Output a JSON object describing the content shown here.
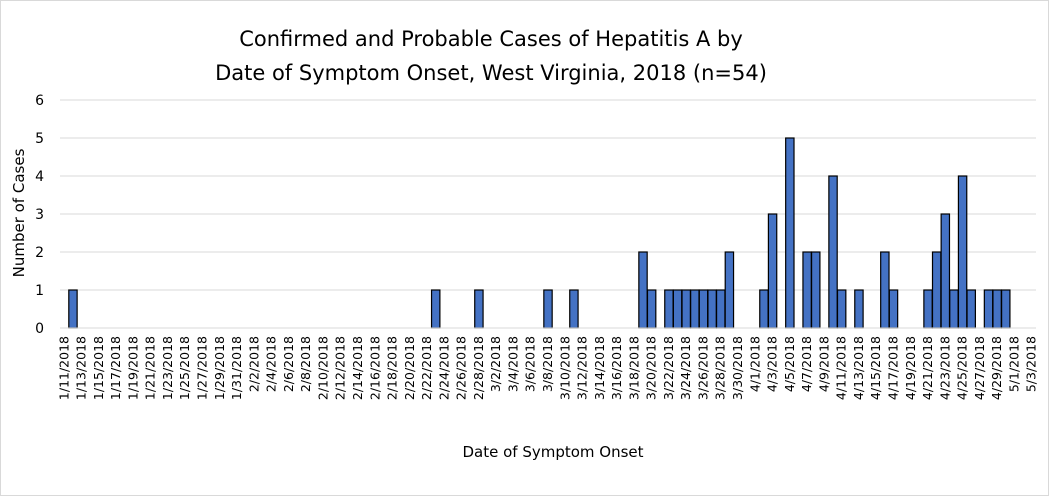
{
  "chart_data": {
    "type": "bar",
    "title_lines": [
      "Confirmed and Probable Cases of Hepatitis A by",
      "Date of Symptom Onset, West Virginia, 2018 (n=54)"
    ],
    "xlabel": "Date of Symptom Onset",
    "ylabel": "Number of Cases",
    "ylim": [
      0,
      6
    ],
    "yticks": [
      "0",
      "1",
      "2",
      "3",
      "4",
      "5",
      "6"
    ],
    "grid": "horizontal",
    "legend": "none",
    "bar_color": "#4472c4",
    "bar_edge_color": "#000000",
    "gridline_color": "#d9d9d9",
    "x_start": "2018-01-11",
    "x_end": "2018-05-03",
    "x_tick_labels": [
      "1/11/2018",
      "1/13/2018",
      "1/15/2018",
      "1/17/2018",
      "1/19/2018",
      "1/21/2018",
      "1/23/2018",
      "1/25/2018",
      "1/27/2018",
      "1/29/2018",
      "1/31/2018",
      "2/2/2018",
      "2/4/2018",
      "2/6/2018",
      "2/8/2018",
      "2/10/2018",
      "2/12/2018",
      "2/14/2018",
      "2/16/2018",
      "2/18/2018",
      "2/20/2018",
      "2/22/2018",
      "2/24/2018",
      "2/26/2018",
      "2/28/2018",
      "3/2/2018",
      "3/4/2018",
      "3/6/2018",
      "3/8/2018",
      "3/10/2018",
      "3/12/2018",
      "3/14/2018",
      "3/16/2018",
      "3/18/2018",
      "3/20/2018",
      "3/22/2018",
      "3/24/2018",
      "3/26/2018",
      "3/28/2018",
      "3/30/2018",
      "4/1/2018",
      "4/3/2018",
      "4/5/2018",
      "4/7/2018",
      "4/9/2018",
      "4/11/2018",
      "4/13/2018",
      "4/15/2018",
      "4/17/2018",
      "4/19/2018",
      "4/21/2018",
      "4/23/2018",
      "4/25/2018",
      "4/27/2018",
      "4/29/2018",
      "5/1/2018",
      "5/3/2018"
    ],
    "points": [
      {
        "date": "2018-01-12",
        "value": 1
      },
      {
        "date": "2018-02-23",
        "value": 1
      },
      {
        "date": "2018-02-28",
        "value": 1
      },
      {
        "date": "2018-03-08",
        "value": 1
      },
      {
        "date": "2018-03-11",
        "value": 1
      },
      {
        "date": "2018-03-19",
        "value": 2
      },
      {
        "date": "2018-03-20",
        "value": 1
      },
      {
        "date": "2018-03-22",
        "value": 1
      },
      {
        "date": "2018-03-23",
        "value": 1
      },
      {
        "date": "2018-03-24",
        "value": 1
      },
      {
        "date": "2018-03-25",
        "value": 1
      },
      {
        "date": "2018-03-26",
        "value": 1
      },
      {
        "date": "2018-03-27",
        "value": 1
      },
      {
        "date": "2018-03-28",
        "value": 1
      },
      {
        "date": "2018-03-29",
        "value": 2
      },
      {
        "date": "2018-04-02",
        "value": 1
      },
      {
        "date": "2018-04-03",
        "value": 3
      },
      {
        "date": "2018-04-05",
        "value": 5
      },
      {
        "date": "2018-04-07",
        "value": 2
      },
      {
        "date": "2018-04-08",
        "value": 2
      },
      {
        "date": "2018-04-10",
        "value": 4
      },
      {
        "date": "2018-04-11",
        "value": 1
      },
      {
        "date": "2018-04-13",
        "value": 1
      },
      {
        "date": "2018-04-16",
        "value": 2
      },
      {
        "date": "2018-04-17",
        "value": 1
      },
      {
        "date": "2018-04-21",
        "value": 1
      },
      {
        "date": "2018-04-22",
        "value": 2
      },
      {
        "date": "2018-04-23",
        "value": 3
      },
      {
        "date": "2018-04-24",
        "value": 1
      },
      {
        "date": "2018-04-25",
        "value": 4
      },
      {
        "date": "2018-04-26",
        "value": 1
      },
      {
        "date": "2018-04-28",
        "value": 1
      },
      {
        "date": "2018-04-29",
        "value": 1
      },
      {
        "date": "2018-04-30",
        "value": 1
      }
    ]
  }
}
